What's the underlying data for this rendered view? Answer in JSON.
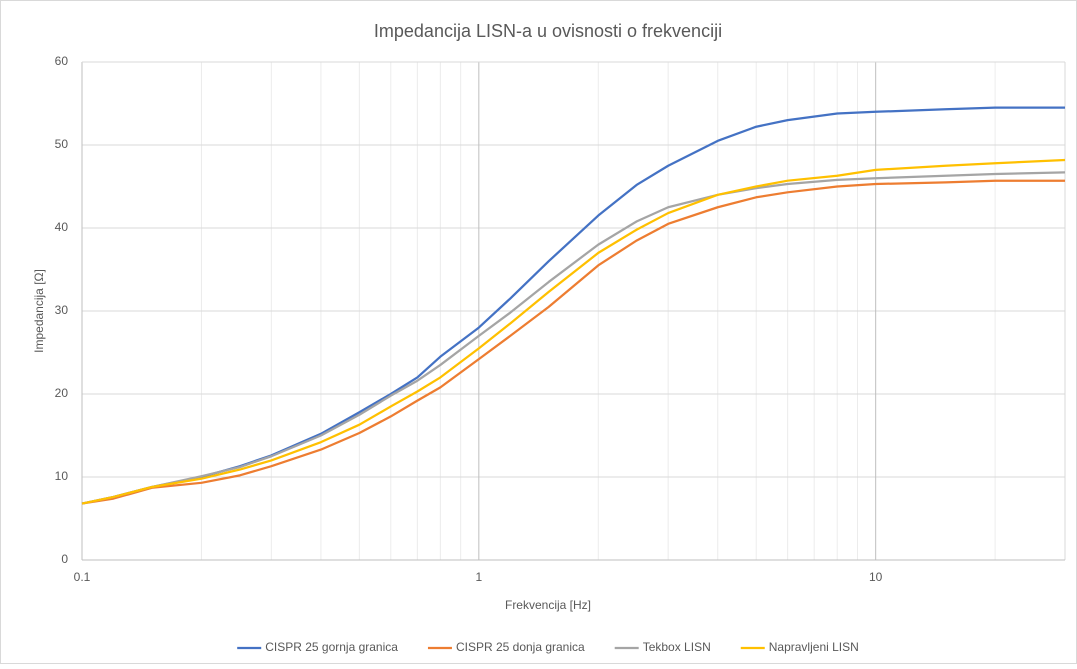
{
  "chart_data": {
    "type": "line",
    "title": "Impedancija LISN-a u ovisnosti o frekvenciji",
    "x_label": "Frekvencija [Hz]",
    "y_label": "Impedancija [Ω]",
    "x": [
      0.1,
      0.12,
      0.15,
      0.2,
      0.25,
      0.3,
      0.4,
      0.5,
      0.6,
      0.7,
      0.8,
      1,
      1.2,
      1.5,
      2,
      2.5,
      3,
      4,
      5,
      6,
      8,
      10,
      15,
      20,
      30
    ],
    "series": [
      {
        "name": "CISPR 25 gornja granica",
        "color": "#4472c4",
        "values": [
          6.8,
          7.6,
          8.8,
          10,
          11.3,
          12.6,
          15.2,
          17.8,
          20,
          22,
          24.5,
          28,
          31.5,
          36,
          41.5,
          45.2,
          47.5,
          50.5,
          52.2,
          53,
          53.8,
          54,
          54.3,
          54.5,
          54.5
        ]
      },
      {
        "name": "CISPR 25 donja granica",
        "color": "#ed7d31",
        "values": [
          6.8,
          7.4,
          8.7,
          9.3,
          10.2,
          11.3,
          13.3,
          15.3,
          17.3,
          19.2,
          20.8,
          24.2,
          27,
          30.5,
          35.5,
          38.5,
          40.5,
          42.5,
          43.7,
          44.3,
          45,
          45.3,
          45.5,
          45.7,
          45.7
        ]
      },
      {
        "name": "Tekbox LISN",
        "color": "#a5a5a5",
        "values": [
          6.8,
          7.6,
          8.8,
          10.1,
          11.2,
          12.5,
          15,
          17.5,
          19.8,
          21.6,
          23.5,
          27,
          29.8,
          33.5,
          38,
          40.8,
          42.5,
          44,
          44.8,
          45.3,
          45.8,
          46,
          46.3,
          46.5,
          46.7
        ]
      },
      {
        "name": "Napravljeni LISN",
        "color": "#ffc000",
        "values": [
          6.8,
          7.6,
          8.8,
          9.8,
          10.9,
          12,
          14.2,
          16.3,
          18.5,
          20.3,
          22,
          25.5,
          28.5,
          32.3,
          37,
          39.8,
          41.8,
          44,
          45,
          45.7,
          46.3,
          47,
          47.5,
          47.8,
          48.2
        ]
      }
    ],
    "xlim": [
      0.1,
      30
    ],
    "xticks": [
      0.1,
      1,
      10
    ],
    "ylim": [
      0,
      60
    ],
    "yticks": [
      0,
      10,
      20,
      30,
      40,
      50,
      60
    ],
    "xscale": "log",
    "grid": true,
    "legend": "bottom"
  }
}
